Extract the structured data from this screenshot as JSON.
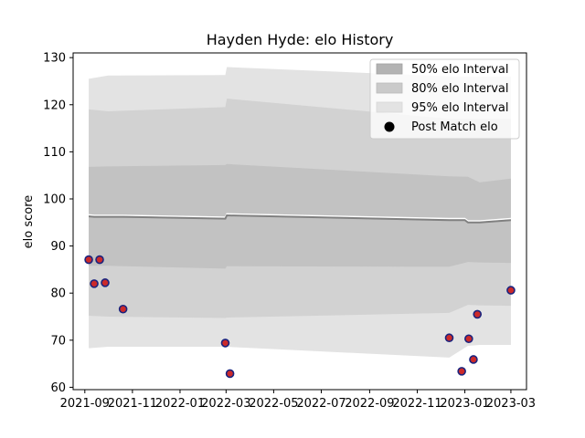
{
  "chart_data": {
    "type": "line",
    "title": "Hayden Hyde: elo History",
    "xlabel": "",
    "ylabel": "elo score",
    "xlim": [
      "2021-08-17",
      "2023-03-21"
    ],
    "ylim": [
      59.5,
      131.0
    ],
    "x_ticks": [
      "2021-09-01",
      "2021-11-01",
      "2022-01-01",
      "2022-03-01",
      "2022-05-01",
      "2022-07-01",
      "2022-09-01",
      "2022-11-01",
      "2023-01-01",
      "2023-03-01"
    ],
    "x_tick_labels": [
      "2021-09",
      "2021-11",
      "2022-01",
      "2022-03",
      "2022-05",
      "2022-07",
      "2022-09",
      "2022-11",
      "2023-01",
      "2023-03"
    ],
    "y_ticks": [
      60,
      70,
      80,
      90,
      100,
      110,
      120,
      130
    ],
    "y_tick_labels": [
      "60",
      "70",
      "80",
      "90",
      "100",
      "110",
      "120",
      "130"
    ],
    "grid": false,
    "legend_position": "top-right",
    "legend": {
      "band_50_label": "50% elo Interval",
      "band_80_label": "80% elo Interval",
      "band_95_label": "95% elo Interval",
      "points_label": "Post Match elo"
    },
    "mean_line": {
      "x": [
        "2021-09-06",
        "2021-09-13",
        "2021-10-01",
        "2021-10-20",
        "2022-02-28",
        "2022-03-02",
        "2022-12-12",
        "2023-01-01",
        "2023-01-05",
        "2023-01-12",
        "2023-01-20",
        "2023-03-01"
      ],
      "y": [
        96.3,
        96.2,
        96.2,
        96.2,
        95.8,
        96.5,
        95.5,
        95.5,
        95.0,
        95.0,
        95.0,
        95.5
      ]
    },
    "band_x": [
      "2021-09-06",
      "2021-10-01",
      "2022-02-28",
      "2022-03-02",
      "2022-12-12",
      "2023-01-05",
      "2023-01-20",
      "2023-03-01"
    ],
    "bands": [
      {
        "name": "95% elo Interval",
        "upper": [
          125.5,
          126.2,
          126.3,
          128.0,
          126.0,
          126.0,
          126.0,
          126.0
        ],
        "lower": [
          68.3,
          68.6,
          68.6,
          68.6,
          66.3,
          68.8,
          69.0,
          69.0
        ]
      },
      {
        "name": "80% elo Interval",
        "upper": [
          119.0,
          118.6,
          119.5,
          121.3,
          117.0,
          117.0,
          117.0,
          117.0
        ],
        "lower": [
          75.2,
          75.0,
          74.7,
          74.8,
          75.8,
          77.5,
          77.4,
          77.3
        ]
      },
      {
        "name": "50% elo Interval",
        "upper": [
          106.8,
          106.9,
          107.2,
          107.4,
          104.8,
          104.7,
          103.5,
          104.3
        ],
        "lower": [
          85.8,
          85.8,
          85.2,
          85.7,
          85.6,
          86.6,
          86.5,
          86.4
        ]
      }
    ],
    "points": {
      "name": "Post Match elo",
      "x": [
        "2021-09-06",
        "2021-09-13",
        "2021-09-20",
        "2021-09-27",
        "2021-10-20",
        "2022-02-28",
        "2022-03-06",
        "2022-12-12",
        "2022-12-28",
        "2023-01-06",
        "2023-01-12",
        "2023-01-17",
        "2023-03-01"
      ],
      "y": [
        87.1,
        82.0,
        87.1,
        82.2,
        76.6,
        69.4,
        62.9,
        70.5,
        63.4,
        70.3,
        65.9,
        75.5,
        80.6
      ]
    },
    "colors": {
      "band_95": "#e3e3e3",
      "band_80": "#cccccc",
      "band_50": "#bcbcbc",
      "mean_line": "#808080",
      "mean_highlight": "#ffffff",
      "point_fill": "#cc2a2a",
      "point_edge": "#1a237e",
      "legend_marker": "#000000"
    }
  }
}
